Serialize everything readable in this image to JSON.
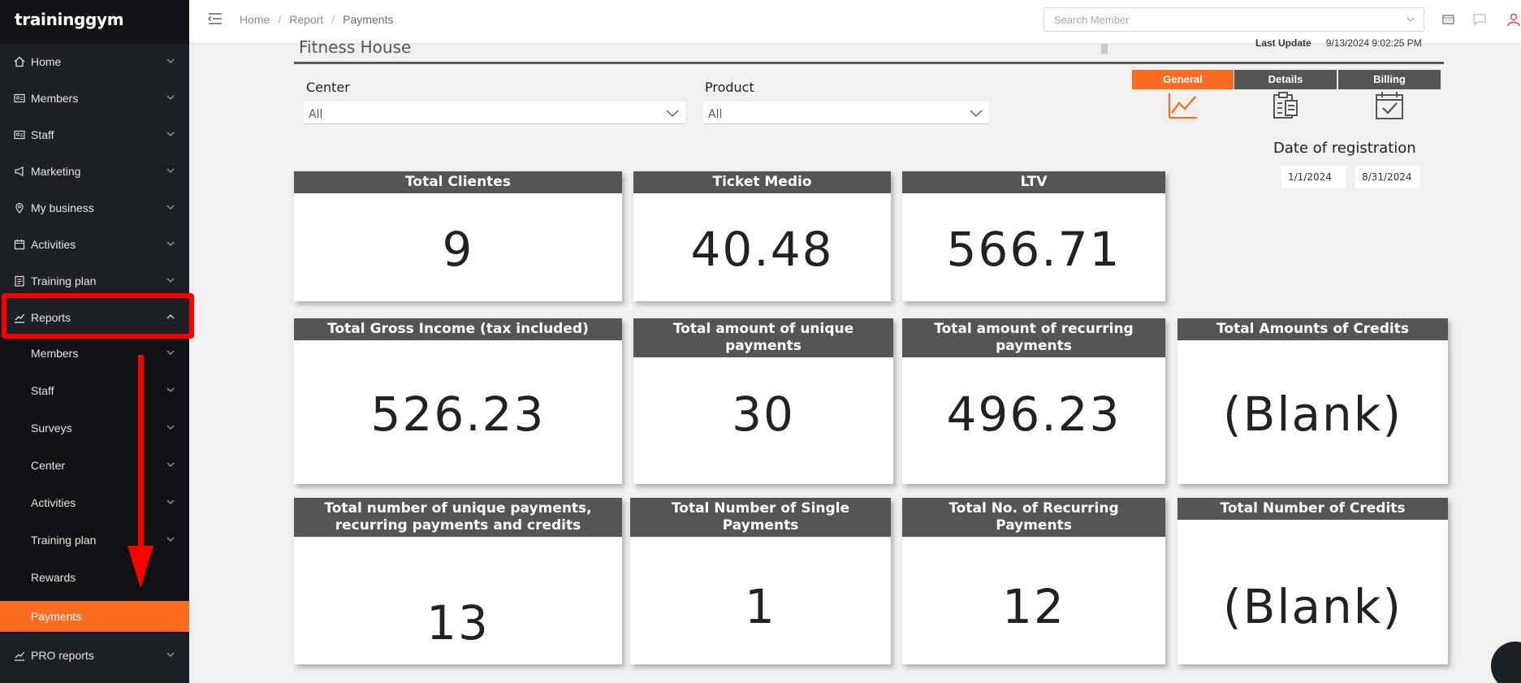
{
  "app": {
    "logo": "traininggym"
  },
  "sidebar": {
    "items": [
      {
        "label": "Home",
        "icon": "home-icon"
      },
      {
        "label": "Members",
        "icon": "members-icon"
      },
      {
        "label": "Staff",
        "icon": "staff-icon"
      },
      {
        "label": "Marketing",
        "icon": "megaphone-icon"
      },
      {
        "label": "My business",
        "icon": "location-pin-icon"
      },
      {
        "label": "Activities",
        "icon": "calendar-icon"
      },
      {
        "label": "Training plan",
        "icon": "clipboard-icon"
      },
      {
        "label": "Reports",
        "icon": "chart-line-icon",
        "expanded": true
      }
    ],
    "sub_items": [
      {
        "label": "Members"
      },
      {
        "label": "Staff"
      },
      {
        "label": "Surveys"
      },
      {
        "label": "Center"
      },
      {
        "label": "Activities"
      },
      {
        "label": "Training plan"
      },
      {
        "label": "Rewards"
      },
      {
        "label": "Payments",
        "active": true
      }
    ],
    "pro_reports": {
      "label": "PRO reports",
      "icon": "chart-line-icon"
    },
    "colors": {
      "active_bg": "#fd6c21",
      "annotation": "#ff0000"
    }
  },
  "header": {
    "breadcrumb": [
      "Home",
      "Report",
      "Payments"
    ],
    "breadcrumb_sep": "/",
    "search_placeholder": "Search Member"
  },
  "report": {
    "title": "Fitness House",
    "last_update_label": "Last Update",
    "last_update_value": "9/13/2024 9:02:25 PM",
    "filters": [
      {
        "label": "Center",
        "value": "All"
      },
      {
        "label": "Product",
        "value": "All"
      }
    ],
    "tabs": [
      {
        "label": "General",
        "active": true,
        "icon": "trend-chart-icon"
      },
      {
        "label": "Details",
        "active": false,
        "icon": "clipboard-list-icon"
      },
      {
        "label": "Billing",
        "active": false,
        "icon": "calendar-check-icon"
      }
    ],
    "date_of_registration": {
      "label": "Date of registration",
      "from": "1/1/2024",
      "to": "8/31/2024"
    },
    "cards": [
      {
        "title": "Total Clientes",
        "value": "9"
      },
      {
        "title": "Ticket Medio",
        "value": "40.48"
      },
      {
        "title": "LTV",
        "value": "566.71"
      },
      {
        "title": "Total Gross Income (tax included)",
        "value": "526.23"
      },
      {
        "title": "Total amount of unique payments",
        "value": "30"
      },
      {
        "title": "Total amount of recurring payments",
        "value": "496.23"
      },
      {
        "title": "Total Amounts of Credits",
        "value": "(Blank)"
      },
      {
        "title": "Total number of unique payments, recurring payments and credits",
        "value": "13"
      },
      {
        "title": "Total Number of Single Payments",
        "value": "1"
      },
      {
        "title": "Total No. of Recurring Payments",
        "value": "12"
      },
      {
        "title": "Total Number of Credits",
        "value": "(Blank)"
      }
    ]
  }
}
